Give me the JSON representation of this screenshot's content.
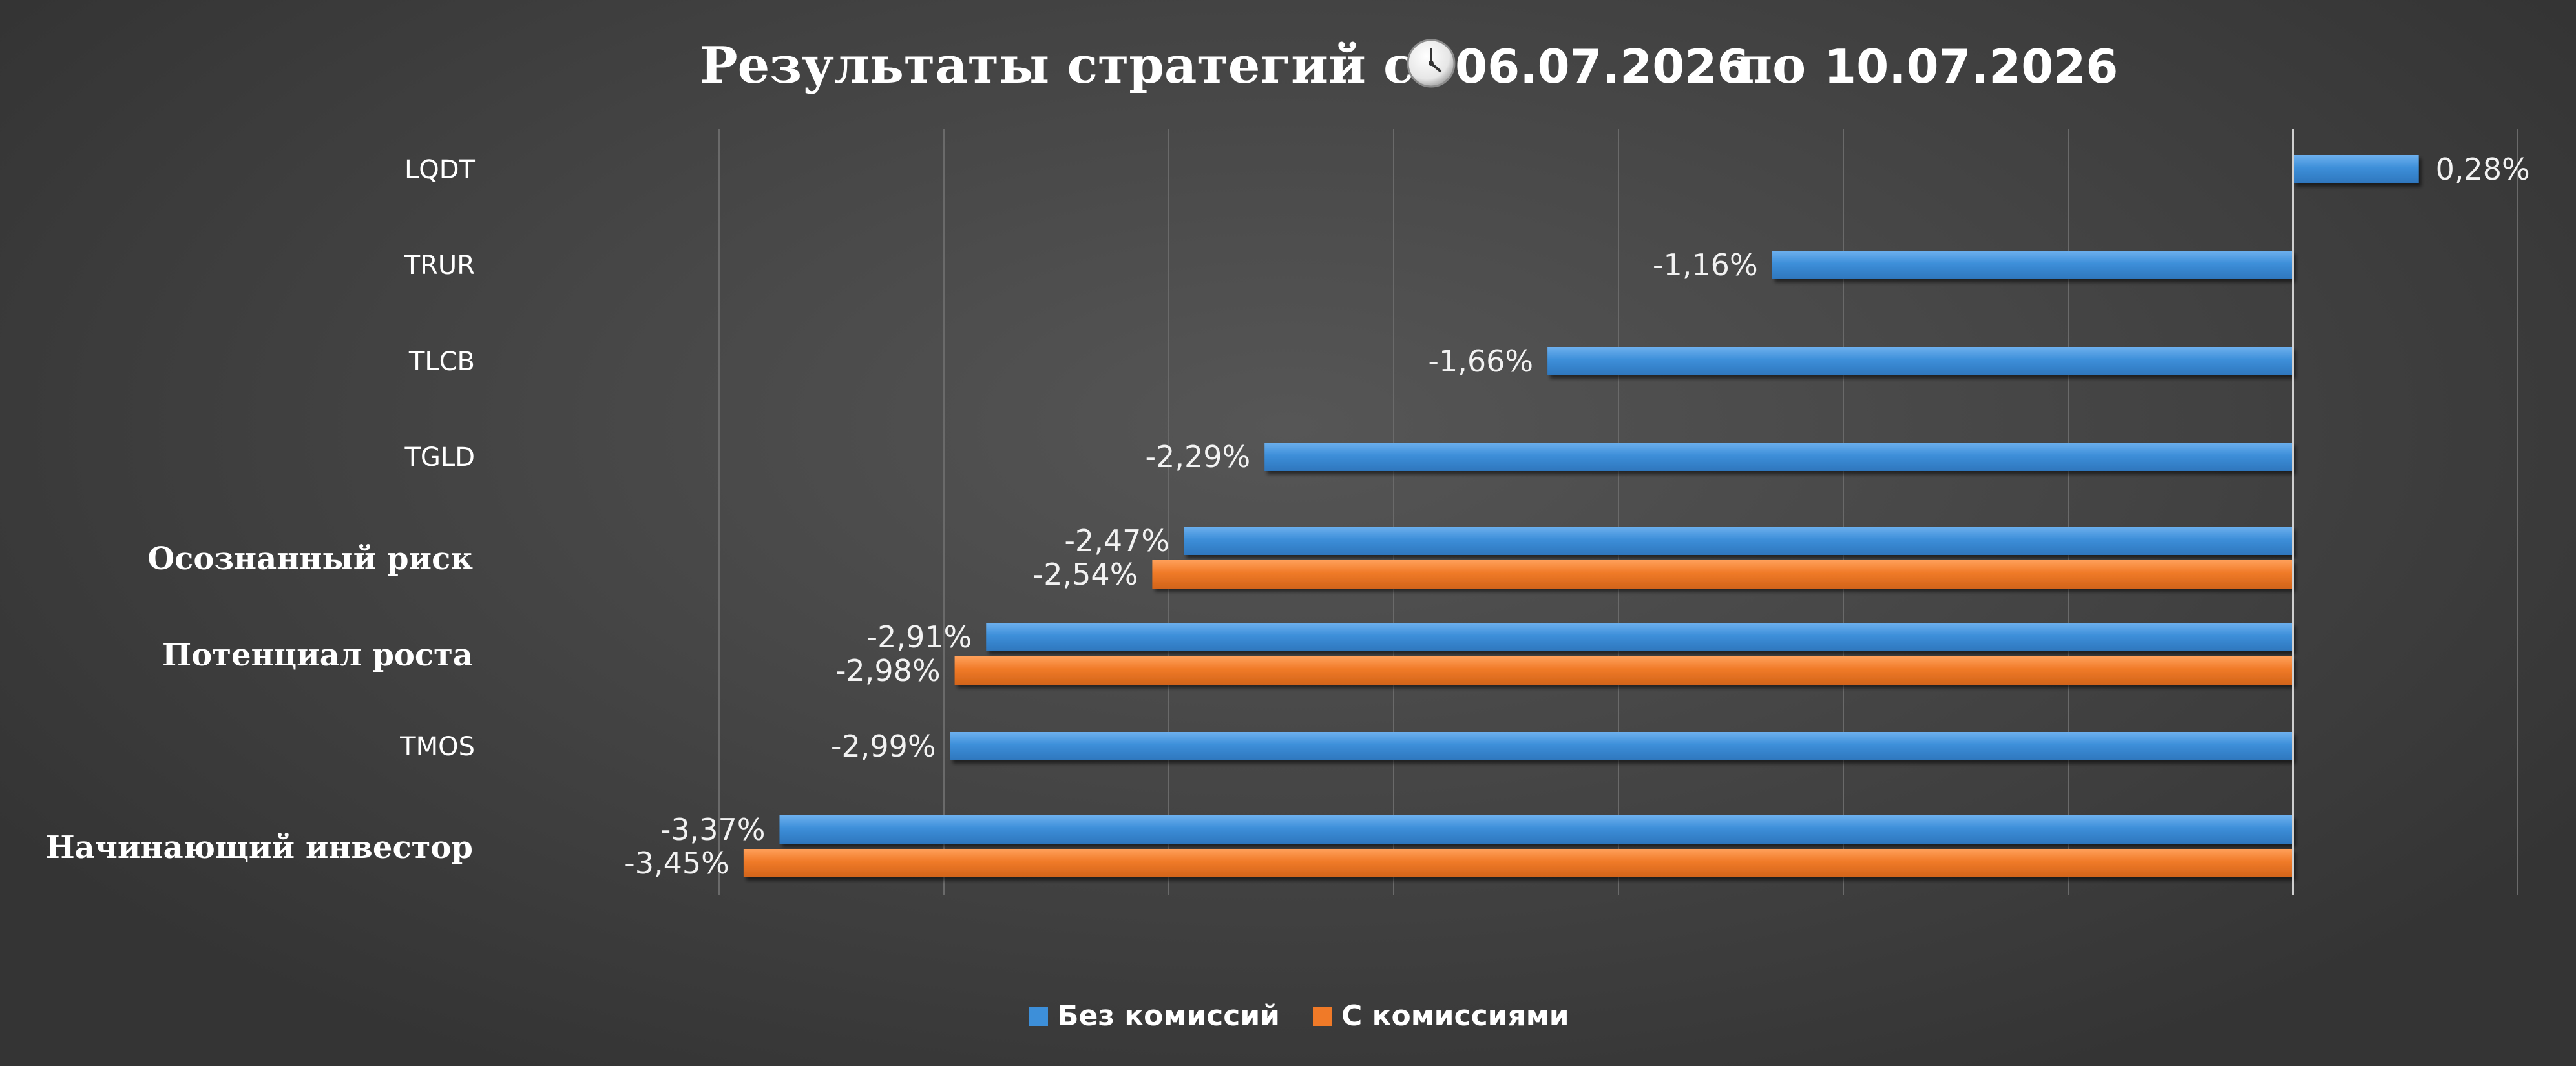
{
  "chart_data": {
    "type": "bar",
    "orientation": "horizontal",
    "title": {
      "prefix": "Результаты стратегий с",
      "icon": "clock-icon",
      "date_from": "06.07.2026",
      "connector": "по",
      "date_to": "10.07.2026"
    },
    "categories": [
      "LQDT",
      "TRUR",
      "TLCB",
      "TGLD",
      "Осознанный риск",
      "Потенциал роста",
      "TMOS",
      "Начинающий инвестор"
    ],
    "category_styles": [
      "plain",
      "plain",
      "plain",
      "plain",
      "serif",
      "serif",
      "plain",
      "serif"
    ],
    "series": [
      {
        "name": "Без комиссий",
        "color": "#3d8fd9",
        "values": [
          0.28,
          -1.16,
          -1.66,
          -2.29,
          -2.47,
          -2.91,
          -2.99,
          -3.37
        ],
        "labels": [
          "0,28%",
          "-1,16%",
          "-1,66%",
          "-2,29%",
          "-2,47%",
          "-2,91%",
          "-2,99%",
          "-3,37%"
        ]
      },
      {
        "name": "С комиссиями",
        "color": "#f07a28",
        "values": [
          null,
          null,
          null,
          null,
          -2.54,
          -2.98,
          null,
          -3.45
        ],
        "labels": [
          "",
          "",
          "",
          "",
          "-2,54%",
          "-2,98%",
          "",
          "-3,45%"
        ]
      }
    ],
    "xlim": [
      -4.0,
      0.5
    ],
    "grid": true,
    "legend": "bottom-center"
  }
}
